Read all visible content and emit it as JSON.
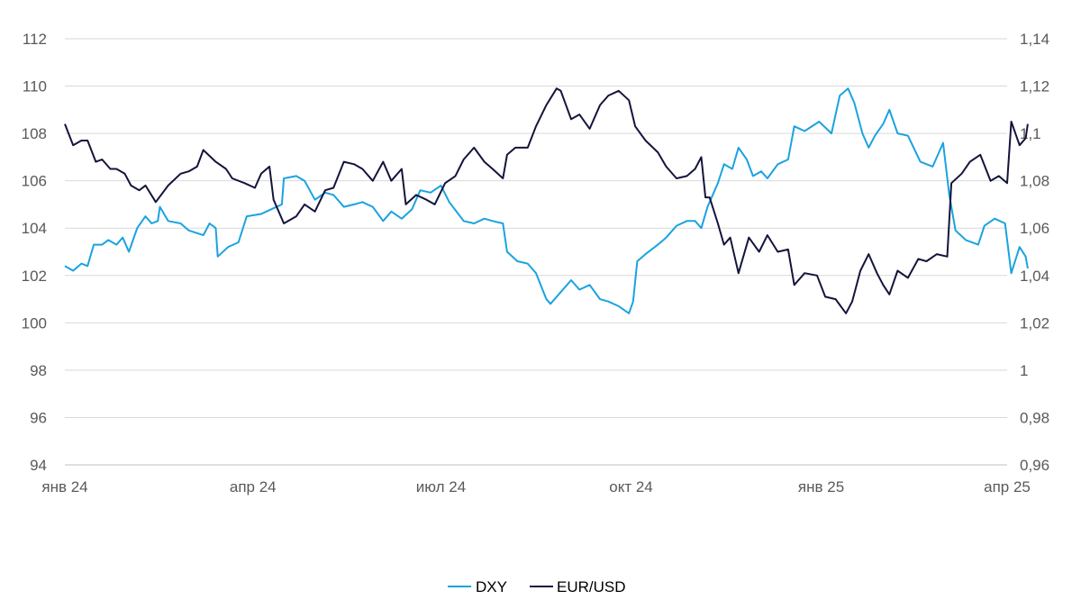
{
  "chart_data": {
    "type": "line",
    "title": "",
    "xlabel": "",
    "ylabel_left": "",
    "ylabel_right": "",
    "x_tick_labels": [
      "янв 24",
      "апр 24",
      "июл 24",
      "окт 24",
      "янв 25",
      "апр 25"
    ],
    "y_left": {
      "range": [
        94,
        112
      ],
      "tick_values": [
        94,
        96,
        98,
        100,
        102,
        104,
        106,
        108,
        110,
        112
      ],
      "tick_labels": [
        "94",
        "96",
        "98",
        "100",
        "102",
        "104",
        "106",
        "108",
        "110",
        "112"
      ]
    },
    "y_right": {
      "range": [
        0.96,
        1.14
      ],
      "tick_values": [
        0.96,
        0.98,
        1.0,
        1.02,
        1.04,
        1.06,
        1.08,
        1.1,
        1.12,
        1.14
      ],
      "tick_labels": [
        "0,96",
        "0,98",
        "1",
        "1,02",
        "1,04",
        "1,06",
        "1,08",
        "1,1",
        "1,12",
        "1,14"
      ]
    },
    "grid": true,
    "legend_position": "bottom-center",
    "series": [
      {
        "name": "DXY",
        "axis": "left",
        "color": "#1AA3E0",
        "points": [
          [
            "2024-01-01",
            102.4
          ],
          [
            "2024-01-05",
            102.2
          ],
          [
            "2024-01-09",
            102.5
          ],
          [
            "2024-01-12",
            102.4
          ],
          [
            "2024-01-15",
            103.3
          ],
          [
            "2024-01-19",
            103.3
          ],
          [
            "2024-01-22",
            103.5
          ],
          [
            "2024-01-26",
            103.3
          ],
          [
            "2024-01-29",
            103.6
          ],
          [
            "2024-02-01",
            103.0
          ],
          [
            "2024-02-05",
            104.0
          ],
          [
            "2024-02-09",
            104.5
          ],
          [
            "2024-02-12",
            104.2
          ],
          [
            "2024-02-15",
            104.3
          ],
          [
            "2024-02-16",
            104.9
          ],
          [
            "2024-02-20",
            104.3
          ],
          [
            "2024-02-26",
            104.2
          ],
          [
            "2024-03-01",
            103.9
          ],
          [
            "2024-03-08",
            103.7
          ],
          [
            "2024-03-11",
            104.2
          ],
          [
            "2024-03-14",
            104.0
          ],
          [
            "2024-03-15",
            102.8
          ],
          [
            "2024-03-20",
            103.2
          ],
          [
            "2024-03-25",
            103.4
          ],
          [
            "2024-03-29",
            104.5
          ],
          [
            "2024-04-05",
            104.6
          ],
          [
            "2024-04-10",
            104.8
          ],
          [
            "2024-04-15",
            105.0
          ],
          [
            "2024-04-16",
            106.1
          ],
          [
            "2024-04-22",
            106.2
          ],
          [
            "2024-04-26",
            106.0
          ],
          [
            "2024-05-01",
            105.2
          ],
          [
            "2024-05-06",
            105.5
          ],
          [
            "2024-05-10",
            105.4
          ],
          [
            "2024-05-15",
            104.9
          ],
          [
            "2024-05-20",
            105.0
          ],
          [
            "2024-05-24",
            105.1
          ],
          [
            "2024-05-29",
            104.9
          ],
          [
            "2024-06-03",
            104.3
          ],
          [
            "2024-06-07",
            104.7
          ],
          [
            "2024-06-12",
            104.4
          ],
          [
            "2024-06-17",
            104.8
          ],
          [
            "2024-06-21",
            105.6
          ],
          [
            "2024-06-26",
            105.5
          ],
          [
            "2024-07-01",
            105.8
          ],
          [
            "2024-07-05",
            105.1
          ],
          [
            "2024-07-12",
            104.3
          ],
          [
            "2024-07-17",
            104.2
          ],
          [
            "2024-07-22",
            104.4
          ],
          [
            "2024-07-26",
            104.3
          ],
          [
            "2024-07-31",
            104.2
          ],
          [
            "2024-08-02",
            103.0
          ],
          [
            "2024-08-07",
            102.6
          ],
          [
            "2024-08-12",
            102.5
          ],
          [
            "2024-08-16",
            102.1
          ],
          [
            "2024-08-21",
            101.0
          ],
          [
            "2024-08-23",
            100.8
          ],
          [
            "2024-08-28",
            101.3
          ],
          [
            "2024-09-02",
            101.8
          ],
          [
            "2024-09-06",
            101.4
          ],
          [
            "2024-09-11",
            101.6
          ],
          [
            "2024-09-16",
            101.0
          ],
          [
            "2024-09-20",
            100.9
          ],
          [
            "2024-09-25",
            100.7
          ],
          [
            "2024-09-30",
            100.4
          ],
          [
            "2024-10-02",
            100.9
          ],
          [
            "2024-10-04",
            102.6
          ],
          [
            "2024-10-08",
            102.9
          ],
          [
            "2024-10-14",
            103.3
          ],
          [
            "2024-10-18",
            103.6
          ],
          [
            "2024-10-23",
            104.1
          ],
          [
            "2024-10-28",
            104.3
          ],
          [
            "2024-11-01",
            104.3
          ],
          [
            "2024-11-04",
            104.0
          ],
          [
            "2024-11-07",
            104.9
          ],
          [
            "2024-11-12",
            105.9
          ],
          [
            "2024-11-15",
            106.7
          ],
          [
            "2024-11-19",
            106.5
          ],
          [
            "2024-11-22",
            107.4
          ],
          [
            "2024-11-26",
            106.9
          ],
          [
            "2024-11-29",
            106.2
          ],
          [
            "2024-12-03",
            106.4
          ],
          [
            "2024-12-06",
            106.1
          ],
          [
            "2024-12-11",
            106.7
          ],
          [
            "2024-12-16",
            106.9
          ],
          [
            "2024-12-19",
            108.3
          ],
          [
            "2024-12-24",
            108.1
          ],
          [
            "2024-12-31",
            108.5
          ],
          [
            "2025-01-06",
            108.0
          ],
          [
            "2025-01-10",
            109.6
          ],
          [
            "2025-01-14",
            109.9
          ],
          [
            "2025-01-17",
            109.3
          ],
          [
            "2025-01-21",
            108.0
          ],
          [
            "2025-01-24",
            107.4
          ],
          [
            "2025-01-27",
            107.9
          ],
          [
            "2025-01-31",
            108.4
          ],
          [
            "2025-02-03",
            109.0
          ],
          [
            "2025-02-07",
            108.0
          ],
          [
            "2025-02-12",
            107.9
          ],
          [
            "2025-02-18",
            106.8
          ],
          [
            "2025-02-24",
            106.6
          ],
          [
            "2025-03-01",
            107.6
          ],
          [
            "2025-03-04",
            105.4
          ],
          [
            "2025-03-07",
            103.9
          ],
          [
            "2025-03-12",
            103.5
          ],
          [
            "2025-03-18",
            103.3
          ],
          [
            "2025-03-21",
            104.1
          ],
          [
            "2025-03-26",
            104.4
          ],
          [
            "2025-03-31",
            104.2
          ],
          [
            "2025-04-03",
            102.1
          ],
          [
            "2025-04-07",
            103.2
          ],
          [
            "2025-04-10",
            102.8
          ],
          [
            "2025-04-11",
            102.3
          ]
        ]
      },
      {
        "name": "EUR/USD",
        "axis": "right",
        "color": "#14143C",
        "points": [
          [
            "2024-01-01",
            1.104
          ],
          [
            "2024-01-05",
            1.095
          ],
          [
            "2024-01-09",
            1.097
          ],
          [
            "2024-01-12",
            1.097
          ],
          [
            "2024-01-16",
            1.088
          ],
          [
            "2024-01-19",
            1.089
          ],
          [
            "2024-01-23",
            1.085
          ],
          [
            "2024-01-26",
            1.085
          ],
          [
            "2024-01-30",
            1.083
          ],
          [
            "2024-02-02",
            1.078
          ],
          [
            "2024-02-06",
            1.076
          ],
          [
            "2024-02-09",
            1.078
          ],
          [
            "2024-02-14",
            1.071
          ],
          [
            "2024-02-20",
            1.078
          ],
          [
            "2024-02-26",
            1.083
          ],
          [
            "2024-03-01",
            1.084
          ],
          [
            "2024-03-05",
            1.086
          ],
          [
            "2024-03-08",
            1.093
          ],
          [
            "2024-03-14",
            1.088
          ],
          [
            "2024-03-19",
            1.085
          ],
          [
            "2024-03-22",
            1.081
          ],
          [
            "2024-03-28",
            1.079
          ],
          [
            "2024-04-02",
            1.077
          ],
          [
            "2024-04-05",
            1.083
          ],
          [
            "2024-04-09",
            1.086
          ],
          [
            "2024-04-11",
            1.072
          ],
          [
            "2024-04-16",
            1.062
          ],
          [
            "2024-04-22",
            1.065
          ],
          [
            "2024-04-26",
            1.07
          ],
          [
            "2024-05-01",
            1.067
          ],
          [
            "2024-05-06",
            1.076
          ],
          [
            "2024-05-10",
            1.077
          ],
          [
            "2024-05-15",
            1.088
          ],
          [
            "2024-05-20",
            1.087
          ],
          [
            "2024-05-24",
            1.085
          ],
          [
            "2024-05-29",
            1.08
          ],
          [
            "2024-06-03",
            1.088
          ],
          [
            "2024-06-07",
            1.08
          ],
          [
            "2024-06-12",
            1.085
          ],
          [
            "2024-06-14",
            1.07
          ],
          [
            "2024-06-19",
            1.074
          ],
          [
            "2024-06-24",
            1.072
          ],
          [
            "2024-06-28",
            1.07
          ],
          [
            "2024-07-03",
            1.079
          ],
          [
            "2024-07-08",
            1.082
          ],
          [
            "2024-07-12",
            1.089
          ],
          [
            "2024-07-17",
            1.094
          ],
          [
            "2024-07-22",
            1.088
          ],
          [
            "2024-07-26",
            1.085
          ],
          [
            "2024-07-31",
            1.081
          ],
          [
            "2024-08-02",
            1.091
          ],
          [
            "2024-08-06",
            1.094
          ],
          [
            "2024-08-12",
            1.094
          ],
          [
            "2024-08-16",
            1.103
          ],
          [
            "2024-08-21",
            1.112
          ],
          [
            "2024-08-26",
            1.119
          ],
          [
            "2024-08-28",
            1.118
          ],
          [
            "2024-09-02",
            1.106
          ],
          [
            "2024-09-06",
            1.108
          ],
          [
            "2024-09-11",
            1.102
          ],
          [
            "2024-09-16",
            1.112
          ],
          [
            "2024-09-20",
            1.116
          ],
          [
            "2024-09-25",
            1.118
          ],
          [
            "2024-09-30",
            1.114
          ],
          [
            "2024-10-03",
            1.103
          ],
          [
            "2024-10-08",
            1.097
          ],
          [
            "2024-10-14",
            1.092
          ],
          [
            "2024-10-18",
            1.086
          ],
          [
            "2024-10-23",
            1.081
          ],
          [
            "2024-10-28",
            1.082
          ],
          [
            "2024-11-01",
            1.085
          ],
          [
            "2024-11-04",
            1.09
          ],
          [
            "2024-11-06",
            1.073
          ],
          [
            "2024-11-08",
            1.073
          ],
          [
            "2024-11-12",
            1.062
          ],
          [
            "2024-11-15",
            1.053
          ],
          [
            "2024-11-18",
            1.056
          ],
          [
            "2024-11-22",
            1.041
          ],
          [
            "2024-11-27",
            1.056
          ],
          [
            "2024-12-02",
            1.05
          ],
          [
            "2024-12-06",
            1.057
          ],
          [
            "2024-12-11",
            1.05
          ],
          [
            "2024-12-16",
            1.051
          ],
          [
            "2024-12-19",
            1.036
          ],
          [
            "2024-12-24",
            1.041
          ],
          [
            "2024-12-30",
            1.04
          ],
          [
            "2025-01-03",
            1.031
          ],
          [
            "2025-01-08",
            1.03
          ],
          [
            "2025-01-13",
            1.024
          ],
          [
            "2025-01-16",
            1.029
          ],
          [
            "2025-01-20",
            1.042
          ],
          [
            "2025-01-24",
            1.049
          ],
          [
            "2025-01-28",
            1.041
          ],
          [
            "2025-01-31",
            1.036
          ],
          [
            "2025-02-03",
            1.032
          ],
          [
            "2025-02-07",
            1.042
          ],
          [
            "2025-02-12",
            1.039
          ],
          [
            "2025-02-17",
            1.047
          ],
          [
            "2025-02-21",
            1.046
          ],
          [
            "2025-02-26",
            1.049
          ],
          [
            "2025-03-03",
            1.048
          ],
          [
            "2025-03-05",
            1.079
          ],
          [
            "2025-03-10",
            1.083
          ],
          [
            "2025-03-14",
            1.088
          ],
          [
            "2025-03-19",
            1.091
          ],
          [
            "2025-03-24",
            1.08
          ],
          [
            "2025-03-28",
            1.082
          ],
          [
            "2025-04-01",
            1.079
          ],
          [
            "2025-04-03",
            1.105
          ],
          [
            "2025-04-07",
            1.095
          ],
          [
            "2025-04-10",
            1.098
          ],
          [
            "2025-04-11",
            1.104
          ]
        ]
      }
    ]
  }
}
